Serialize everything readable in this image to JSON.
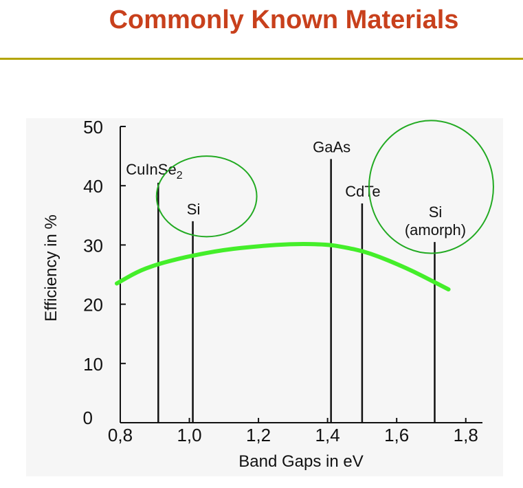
{
  "page": {
    "title": "Commonly Known Materials"
  },
  "colors": {
    "title": "#c8401c",
    "rule": "#b3a400",
    "curve": "#44ee2a",
    "circles": "#22aa22",
    "panel": "#f6f6f6"
  },
  "chart_data": {
    "type": "bar",
    "xlabel": "Band Gaps in eV",
    "ylabel": "Efficiency in %",
    "xlim": [
      0.8,
      1.9
    ],
    "ylim": [
      0,
      50
    ],
    "x_ticks": [
      0.8,
      1.0,
      1.2,
      1.4,
      1.6,
      1.8
    ],
    "x_tick_labels": [
      "0,8",
      "1,0",
      "1,2",
      "1,4",
      "1,6",
      "1,8"
    ],
    "y_ticks": [
      0,
      10,
      20,
      30,
      40,
      50
    ],
    "y_tick_labels": [
      "0",
      "10",
      "20",
      "30",
      "40",
      "50"
    ],
    "materials": [
      {
        "label": "CuInSe",
        "subscript": "2",
        "x": 0.91,
        "y": 40.5
      },
      {
        "label": "Si",
        "subscript": "",
        "x": 1.01,
        "y": 34
      },
      {
        "label": "GaAs",
        "subscript": "",
        "x": 1.41,
        "y": 44.5
      },
      {
        "label": "CdTe",
        "subscript": "",
        "x": 1.5,
        "y": 37
      },
      {
        "label": "Si",
        "label2": "(amorph)",
        "subscript": "",
        "x": 1.71,
        "y": 30.5
      }
    ],
    "efficiency_curve": {
      "x": [
        0.79,
        0.85,
        0.9,
        0.95,
        1.0,
        1.1,
        1.2,
        1.3,
        1.4,
        1.45,
        1.5,
        1.55,
        1.6,
        1.65,
        1.7,
        1.75
      ],
      "y": [
        23.5,
        25.5,
        26.6,
        27.4,
        28.1,
        29.2,
        29.8,
        30.2,
        30.1,
        29.6,
        29.0,
        28.0,
        26.8,
        25.5,
        24.0,
        22.5
      ]
    },
    "annotations": [
      {
        "shape": "circle",
        "cx": 1.05,
        "cy": 38.2,
        "rx_units": 0.145,
        "ry_units": 6.8
      },
      {
        "shape": "circle",
        "cx": 1.7,
        "cy": 39.8,
        "rx_units": 0.18,
        "ry_units": 11.2
      }
    ]
  }
}
